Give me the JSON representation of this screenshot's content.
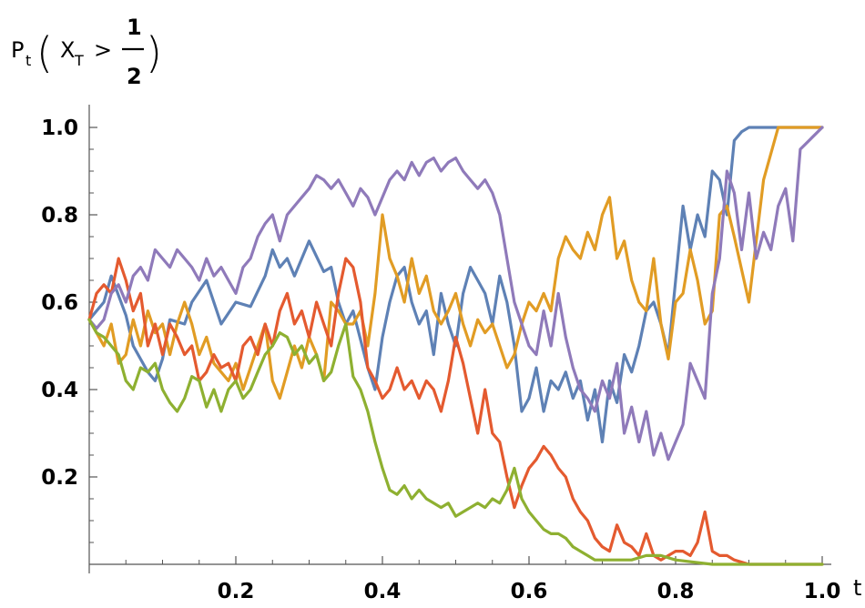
{
  "chart_data": {
    "type": "line",
    "title": "",
    "ylabel": {
      "prefix": "P",
      "prefix_sub": "t",
      "open_paren": "(",
      "var": "X",
      "var_sub": "T",
      "operator": ">",
      "frac_num": "1",
      "frac_den": "2",
      "close_paren": ")"
    },
    "xlabel": "t",
    "xlim": [
      0,
      1.0
    ],
    "ylim": [
      0,
      1.0
    ],
    "xticks": [
      {
        "value": 0.2,
        "label": "0.2"
      },
      {
        "value": 0.4,
        "label": "0.4"
      },
      {
        "value": 0.6,
        "label": "0.6"
      },
      {
        "value": 0.8,
        "label": "0.8"
      },
      {
        "value": 1.0,
        "label": "1.0"
      }
    ],
    "yticks": [
      {
        "value": 0.2,
        "label": "0.2"
      },
      {
        "value": 0.4,
        "label": "0.4"
      },
      {
        "value": 0.6,
        "label": "0.6"
      },
      {
        "value": 0.8,
        "label": "0.8"
      },
      {
        "value": 1.0,
        "label": "1.0"
      }
    ],
    "grid": false,
    "legend": "none",
    "series": [
      {
        "color": "#5E81B5",
        "x": [
          0,
          0.02,
          0.03,
          0.05,
          0.06,
          0.08,
          0.09,
          0.1,
          0.11,
          0.13,
          0.14,
          0.16,
          0.18,
          0.2,
          0.22,
          0.24,
          0.25,
          0.26,
          0.27,
          0.28,
          0.3,
          0.32,
          0.33,
          0.34,
          0.35,
          0.36,
          0.38,
          0.39,
          0.4,
          0.41,
          0.42,
          0.43,
          0.44,
          0.45,
          0.46,
          0.47,
          0.48,
          0.49,
          0.5,
          0.51,
          0.52,
          0.53,
          0.54,
          0.55,
          0.56,
          0.57,
          0.58,
          0.59,
          0.6,
          0.61,
          0.62,
          0.63,
          0.64,
          0.65,
          0.66,
          0.67,
          0.68,
          0.69,
          0.7,
          0.71,
          0.72,
          0.73,
          0.74,
          0.75,
          0.76,
          0.77,
          0.78,
          0.79,
          0.8,
          0.81,
          0.82,
          0.83,
          0.84,
          0.85,
          0.86,
          0.87,
          0.88,
          0.89,
          0.9,
          0.95,
          1.0
        ],
        "y": [
          0.56,
          0.6,
          0.66,
          0.57,
          0.5,
          0.44,
          0.42,
          0.47,
          0.56,
          0.55,
          0.6,
          0.65,
          0.55,
          0.6,
          0.59,
          0.66,
          0.72,
          0.68,
          0.7,
          0.66,
          0.74,
          0.67,
          0.68,
          0.6,
          0.55,
          0.58,
          0.45,
          0.4,
          0.52,
          0.6,
          0.66,
          0.68,
          0.6,
          0.55,
          0.58,
          0.48,
          0.62,
          0.55,
          0.5,
          0.62,
          0.68,
          0.65,
          0.62,
          0.55,
          0.66,
          0.6,
          0.5,
          0.35,
          0.38,
          0.45,
          0.35,
          0.42,
          0.4,
          0.44,
          0.38,
          0.42,
          0.33,
          0.4,
          0.28,
          0.42,
          0.37,
          0.48,
          0.44,
          0.5,
          0.58,
          0.6,
          0.55,
          0.48,
          0.65,
          0.82,
          0.72,
          0.8,
          0.75,
          0.9,
          0.88,
          0.8,
          0.97,
          0.99,
          1.0,
          1.0,
          1.0
        ]
      },
      {
        "color": "#E19C24",
        "x": [
          0,
          0.02,
          0.03,
          0.04,
          0.05,
          0.06,
          0.07,
          0.08,
          0.09,
          0.1,
          0.11,
          0.12,
          0.13,
          0.14,
          0.15,
          0.16,
          0.17,
          0.18,
          0.19,
          0.2,
          0.21,
          0.22,
          0.23,
          0.24,
          0.25,
          0.26,
          0.27,
          0.28,
          0.29,
          0.3,
          0.31,
          0.32,
          0.33,
          0.34,
          0.35,
          0.36,
          0.37,
          0.38,
          0.39,
          0.4,
          0.41,
          0.42,
          0.43,
          0.44,
          0.45,
          0.46,
          0.47,
          0.48,
          0.49,
          0.5,
          0.51,
          0.52,
          0.53,
          0.54,
          0.55,
          0.56,
          0.57,
          0.58,
          0.59,
          0.6,
          0.61,
          0.62,
          0.63,
          0.64,
          0.65,
          0.66,
          0.67,
          0.68,
          0.69,
          0.7,
          0.71,
          0.72,
          0.73,
          0.74,
          0.75,
          0.76,
          0.77,
          0.78,
          0.79,
          0.8,
          0.81,
          0.82,
          0.83,
          0.84,
          0.85,
          0.86,
          0.87,
          0.88,
          0.9,
          0.92,
          0.94,
          0.96,
          1.0
        ],
        "y": [
          0.56,
          0.5,
          0.55,
          0.46,
          0.48,
          0.56,
          0.5,
          0.58,
          0.53,
          0.55,
          0.48,
          0.55,
          0.6,
          0.55,
          0.48,
          0.52,
          0.46,
          0.44,
          0.42,
          0.46,
          0.4,
          0.45,
          0.5,
          0.55,
          0.42,
          0.38,
          0.44,
          0.5,
          0.45,
          0.52,
          0.48,
          0.42,
          0.6,
          0.58,
          0.55,
          0.55,
          0.58,
          0.5,
          0.62,
          0.8,
          0.7,
          0.66,
          0.6,
          0.7,
          0.62,
          0.66,
          0.58,
          0.55,
          0.58,
          0.62,
          0.55,
          0.5,
          0.56,
          0.53,
          0.55,
          0.5,
          0.45,
          0.48,
          0.55,
          0.6,
          0.58,
          0.62,
          0.58,
          0.7,
          0.75,
          0.72,
          0.7,
          0.76,
          0.72,
          0.8,
          0.84,
          0.7,
          0.74,
          0.65,
          0.6,
          0.58,
          0.7,
          0.55,
          0.47,
          0.6,
          0.62,
          0.72,
          0.65,
          0.55,
          0.58,
          0.8,
          0.82,
          0.75,
          0.6,
          0.88,
          1.0,
          1.0,
          1.0
        ]
      },
      {
        "color": "#E45A2F",
        "x": [
          0,
          0.01,
          0.02,
          0.03,
          0.04,
          0.05,
          0.06,
          0.07,
          0.08,
          0.09,
          0.1,
          0.11,
          0.12,
          0.13,
          0.14,
          0.15,
          0.16,
          0.17,
          0.18,
          0.19,
          0.2,
          0.21,
          0.22,
          0.23,
          0.24,
          0.25,
          0.26,
          0.27,
          0.28,
          0.29,
          0.3,
          0.31,
          0.32,
          0.33,
          0.34,
          0.35,
          0.36,
          0.37,
          0.38,
          0.39,
          0.4,
          0.41,
          0.42,
          0.43,
          0.44,
          0.45,
          0.46,
          0.47,
          0.48,
          0.49,
          0.5,
          0.51,
          0.52,
          0.53,
          0.54,
          0.55,
          0.56,
          0.57,
          0.58,
          0.59,
          0.6,
          0.61,
          0.62,
          0.63,
          0.64,
          0.65,
          0.66,
          0.67,
          0.68,
          0.69,
          0.7,
          0.71,
          0.72,
          0.73,
          0.74,
          0.75,
          0.76,
          0.77,
          0.78,
          0.79,
          0.8,
          0.81,
          0.82,
          0.83,
          0.84,
          0.85,
          0.86,
          0.87,
          0.88,
          0.9,
          0.92,
          0.94,
          0.96,
          1.0
        ],
        "y": [
          0.56,
          0.62,
          0.64,
          0.62,
          0.7,
          0.65,
          0.58,
          0.62,
          0.5,
          0.55,
          0.48,
          0.55,
          0.52,
          0.48,
          0.5,
          0.42,
          0.44,
          0.48,
          0.45,
          0.46,
          0.42,
          0.5,
          0.52,
          0.48,
          0.55,
          0.5,
          0.58,
          0.62,
          0.55,
          0.58,
          0.52,
          0.6,
          0.55,
          0.5,
          0.62,
          0.7,
          0.68,
          0.6,
          0.45,
          0.42,
          0.38,
          0.4,
          0.45,
          0.4,
          0.42,
          0.38,
          0.42,
          0.4,
          0.35,
          0.42,
          0.52,
          0.46,
          0.38,
          0.3,
          0.4,
          0.3,
          0.28,
          0.2,
          0.13,
          0.18,
          0.22,
          0.24,
          0.27,
          0.25,
          0.22,
          0.2,
          0.15,
          0.12,
          0.1,
          0.06,
          0.04,
          0.03,
          0.09,
          0.05,
          0.04,
          0.02,
          0.07,
          0.02,
          0.01,
          0.02,
          0.03,
          0.03,
          0.02,
          0.05,
          0.12,
          0.03,
          0.02,
          0.02,
          0.01,
          0.0,
          0.0,
          0.0,
          0.0,
          0.0
        ]
      },
      {
        "color": "#8F7ABA",
        "x": [
          0,
          0.01,
          0.02,
          0.03,
          0.04,
          0.05,
          0.06,
          0.07,
          0.08,
          0.09,
          0.1,
          0.11,
          0.12,
          0.13,
          0.14,
          0.15,
          0.16,
          0.17,
          0.18,
          0.19,
          0.2,
          0.21,
          0.22,
          0.23,
          0.24,
          0.25,
          0.26,
          0.27,
          0.28,
          0.29,
          0.3,
          0.31,
          0.32,
          0.33,
          0.34,
          0.35,
          0.36,
          0.37,
          0.38,
          0.39,
          0.4,
          0.41,
          0.42,
          0.43,
          0.44,
          0.45,
          0.46,
          0.47,
          0.48,
          0.49,
          0.5,
          0.51,
          0.52,
          0.53,
          0.54,
          0.55,
          0.56,
          0.57,
          0.58,
          0.59,
          0.6,
          0.61,
          0.62,
          0.63,
          0.64,
          0.65,
          0.66,
          0.67,
          0.68,
          0.69,
          0.7,
          0.71,
          0.72,
          0.73,
          0.74,
          0.75,
          0.76,
          0.77,
          0.78,
          0.79,
          0.8,
          0.81,
          0.82,
          0.83,
          0.84,
          0.85,
          0.86,
          0.87,
          0.88,
          0.89,
          0.9,
          0.91,
          0.92,
          0.93,
          0.94,
          0.95,
          0.96,
          0.97,
          1.0
        ],
        "y": [
          0.56,
          0.54,
          0.56,
          0.62,
          0.64,
          0.6,
          0.66,
          0.68,
          0.65,
          0.72,
          0.7,
          0.68,
          0.72,
          0.7,
          0.68,
          0.65,
          0.7,
          0.66,
          0.68,
          0.65,
          0.62,
          0.68,
          0.7,
          0.75,
          0.78,
          0.8,
          0.74,
          0.8,
          0.82,
          0.84,
          0.86,
          0.89,
          0.88,
          0.86,
          0.88,
          0.85,
          0.82,
          0.86,
          0.84,
          0.8,
          0.84,
          0.88,
          0.9,
          0.88,
          0.92,
          0.89,
          0.92,
          0.93,
          0.9,
          0.92,
          0.93,
          0.9,
          0.88,
          0.86,
          0.88,
          0.85,
          0.8,
          0.7,
          0.6,
          0.55,
          0.5,
          0.48,
          0.58,
          0.5,
          0.62,
          0.52,
          0.45,
          0.4,
          0.38,
          0.35,
          0.42,
          0.38,
          0.46,
          0.3,
          0.36,
          0.28,
          0.35,
          0.25,
          0.3,
          0.24,
          0.28,
          0.32,
          0.46,
          0.42,
          0.38,
          0.62,
          0.7,
          0.9,
          0.85,
          0.72,
          0.85,
          0.7,
          0.76,
          0.72,
          0.82,
          0.86,
          0.74,
          0.95,
          1.0
        ]
      },
      {
        "color": "#8EB031",
        "x": [
          0,
          0.01,
          0.02,
          0.03,
          0.04,
          0.05,
          0.06,
          0.07,
          0.08,
          0.09,
          0.1,
          0.11,
          0.12,
          0.13,
          0.14,
          0.15,
          0.16,
          0.17,
          0.18,
          0.19,
          0.2,
          0.21,
          0.22,
          0.23,
          0.24,
          0.25,
          0.26,
          0.27,
          0.28,
          0.29,
          0.3,
          0.31,
          0.32,
          0.33,
          0.34,
          0.35,
          0.36,
          0.37,
          0.38,
          0.39,
          0.4,
          0.41,
          0.42,
          0.43,
          0.44,
          0.45,
          0.46,
          0.47,
          0.48,
          0.49,
          0.5,
          0.51,
          0.52,
          0.53,
          0.54,
          0.55,
          0.56,
          0.57,
          0.58,
          0.59,
          0.6,
          0.61,
          0.62,
          0.63,
          0.64,
          0.65,
          0.66,
          0.67,
          0.68,
          0.69,
          0.7,
          0.72,
          0.74,
          0.76,
          0.78,
          0.8,
          0.85,
          0.9,
          0.95,
          1.0
        ],
        "y": [
          0.56,
          0.53,
          0.52,
          0.5,
          0.48,
          0.42,
          0.4,
          0.45,
          0.44,
          0.46,
          0.4,
          0.37,
          0.35,
          0.38,
          0.43,
          0.42,
          0.36,
          0.4,
          0.35,
          0.4,
          0.42,
          0.38,
          0.4,
          0.44,
          0.48,
          0.5,
          0.53,
          0.52,
          0.48,
          0.5,
          0.46,
          0.48,
          0.42,
          0.44,
          0.5,
          0.55,
          0.43,
          0.4,
          0.35,
          0.28,
          0.22,
          0.17,
          0.16,
          0.18,
          0.15,
          0.17,
          0.15,
          0.14,
          0.13,
          0.14,
          0.11,
          0.12,
          0.13,
          0.14,
          0.13,
          0.15,
          0.14,
          0.17,
          0.22,
          0.15,
          0.12,
          0.1,
          0.08,
          0.07,
          0.07,
          0.06,
          0.04,
          0.03,
          0.02,
          0.01,
          0.01,
          0.01,
          0.01,
          0.02,
          0.02,
          0.01,
          0.0,
          0.0,
          0.0,
          0.0
        ]
      }
    ]
  }
}
